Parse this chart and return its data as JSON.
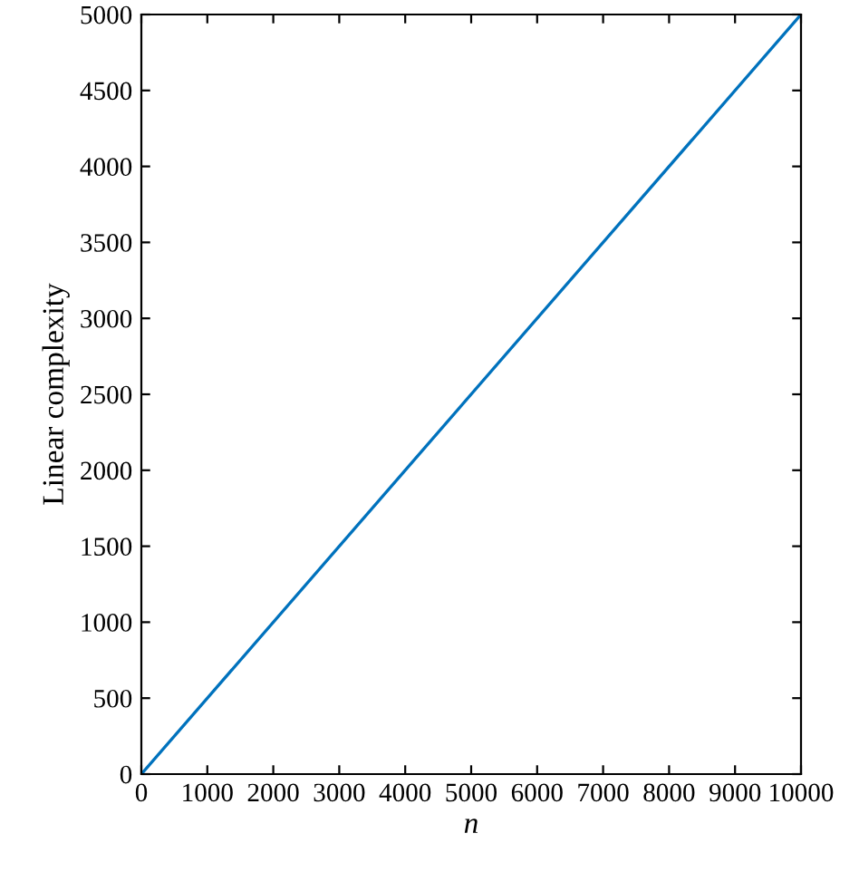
{
  "chart_data": {
    "type": "line",
    "xlabel": "n",
    "ylabel": "Linear complexity",
    "x": [
      0,
      10000
    ],
    "series": [
      {
        "color": "#0072bd",
        "values": [
          0,
          5000
        ]
      }
    ],
    "xlim": [
      0,
      10000
    ],
    "xticks": [
      0,
      1000,
      2000,
      3000,
      4000,
      5000,
      6000,
      7000,
      8000,
      9000,
      10000
    ],
    "ylim": [
      0,
      5000
    ],
    "yticks": [
      0,
      500,
      1000,
      1500,
      2000,
      2500,
      3000,
      3500,
      4000,
      4500,
      5000
    ],
    "grid": false,
    "legend": false,
    "marker": "none",
    "line_style": "solid"
  }
}
